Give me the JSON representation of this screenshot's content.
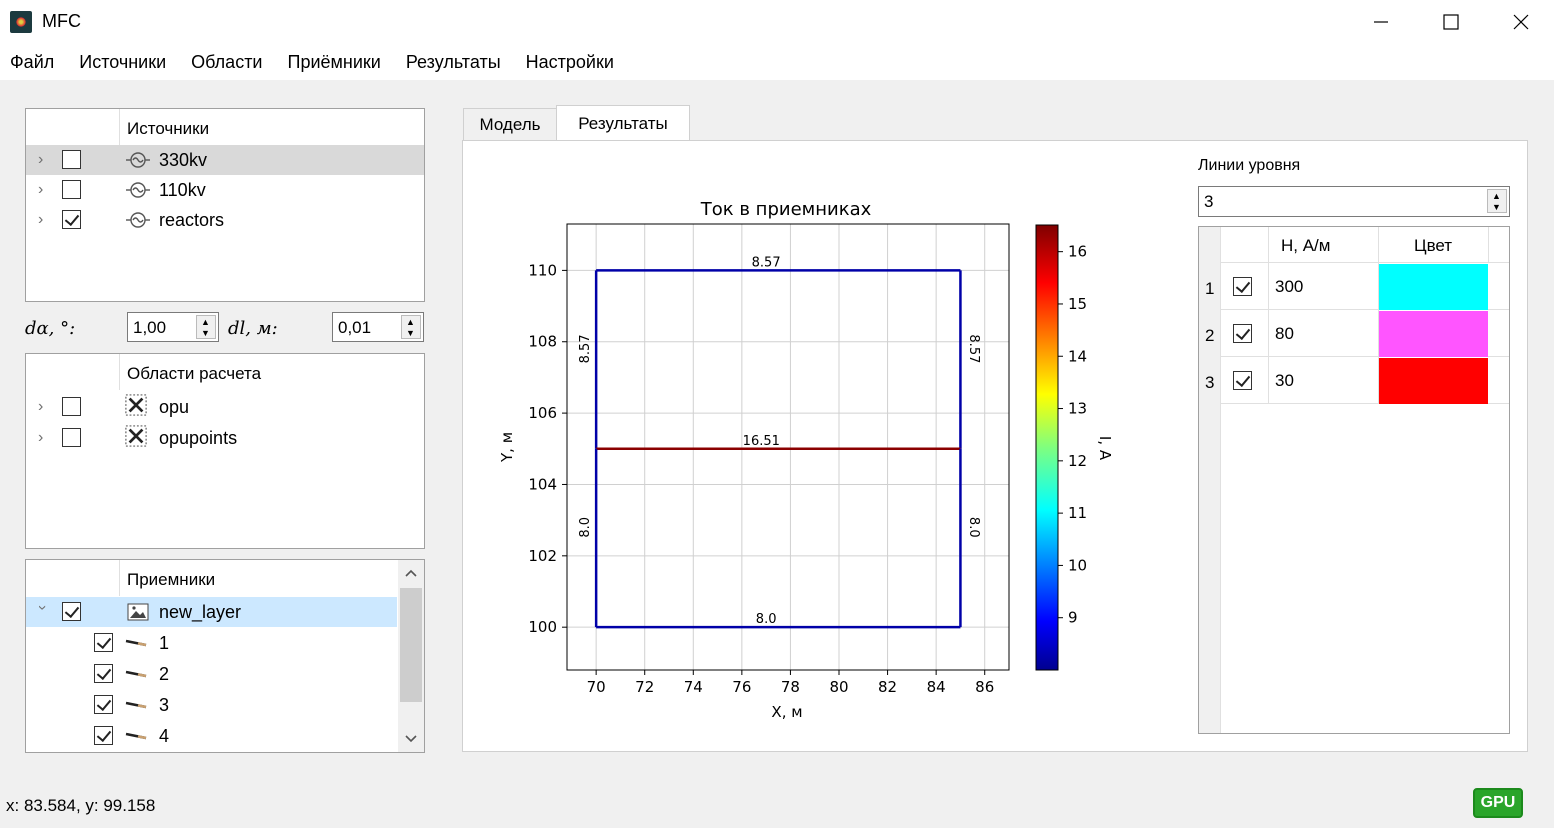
{
  "window": {
    "title": "MFC"
  },
  "menu": [
    "Файл",
    "Источники",
    "Области",
    "Приёмники",
    "Результаты",
    "Настройки"
  ],
  "sources": {
    "header": "Источники",
    "items": [
      {
        "label": "330kv",
        "checked": false
      },
      {
        "label": "110kv",
        "checked": false
      },
      {
        "label": "reactors",
        "checked": true
      }
    ]
  },
  "params": {
    "da_label": "dα, °:",
    "da_value": "1,00",
    "dl_label": "dl, м:",
    "dl_value": "0,01"
  },
  "areas": {
    "header": "Области расчета",
    "items": [
      {
        "label": "opu",
        "checked": false
      },
      {
        "label": "opupoints",
        "checked": false
      }
    ]
  },
  "receivers": {
    "header": "Приемники",
    "layer": "new_layer",
    "items": [
      "1",
      "2",
      "3",
      "4"
    ]
  },
  "tabs": [
    {
      "label": "Модель",
      "active": false
    },
    {
      "label": "Результаты",
      "active": true
    }
  ],
  "levels": {
    "label": "Линии уровня",
    "count": "3",
    "columns": [
      "H, А/м",
      "Цвет"
    ],
    "rows": [
      {
        "index": "1",
        "value": "300",
        "color": "#00ffff"
      },
      {
        "index": "2",
        "value": "80",
        "color": "#ff55ff"
      },
      {
        "index": "3",
        "value": "30",
        "color": "#ff0000"
      }
    ]
  },
  "chart_data": {
    "type": "line",
    "title": "Ток в приемниках",
    "xlabel": "X, м",
    "ylabel": "Y, м",
    "xlim": [
      68.8,
      87
    ],
    "ylim": [
      98.8,
      111.3
    ],
    "xticks": [
      70,
      72,
      74,
      76,
      78,
      80,
      82,
      84,
      86
    ],
    "yticks": [
      100,
      102,
      104,
      106,
      108,
      110
    ],
    "grid": true,
    "series": [
      {
        "x": [
          70,
          85
        ],
        "y": [
          110,
          110
        ],
        "value": 8.57,
        "label": "8.57",
        "label_at": [
          77,
          110
        ]
      },
      {
        "x": [
          70,
          70
        ],
        "y": [
          105,
          110
        ],
        "value": 8.57,
        "label": "8.57",
        "label_at": [
          69.7,
          107.8
        ]
      },
      {
        "x": [
          85,
          85
        ],
        "y": [
          105,
          110
        ],
        "value": 8.57,
        "label": "8.57",
        "label_at": [
          85.4,
          107.8
        ]
      },
      {
        "x": [
          70,
          85
        ],
        "y": [
          105,
          105
        ],
        "value": 16.51,
        "label": "16.51",
        "label_at": [
          76.8,
          105
        ]
      },
      {
        "x": [
          70,
          70
        ],
        "y": [
          100,
          105
        ],
        "value": 8.0,
        "label": "8.0",
        "label_at": [
          69.7,
          102.8
        ]
      },
      {
        "x": [
          85,
          85
        ],
        "y": [
          100,
          105
        ],
        "value": 8.0,
        "label": "8.0",
        "label_at": [
          85.4,
          102.8
        ]
      },
      {
        "x": [
          70,
          85
        ],
        "y": [
          100,
          100
        ],
        "value": 8.0,
        "label": "8.0",
        "label_at": [
          77,
          100
        ]
      }
    ],
    "colorbar": {
      "label": "I, А",
      "min": 8.0,
      "max": 16.51,
      "ticks": [
        9,
        10,
        11,
        12,
        13,
        14,
        15,
        16
      ],
      "colormap": "jet"
    }
  },
  "status": {
    "coords": "x: 83.584, y: 99.158",
    "gpu": "GPU"
  },
  "colors": {
    "accent_selected": "#cce8ff",
    "gpu": "#2aa52a"
  }
}
